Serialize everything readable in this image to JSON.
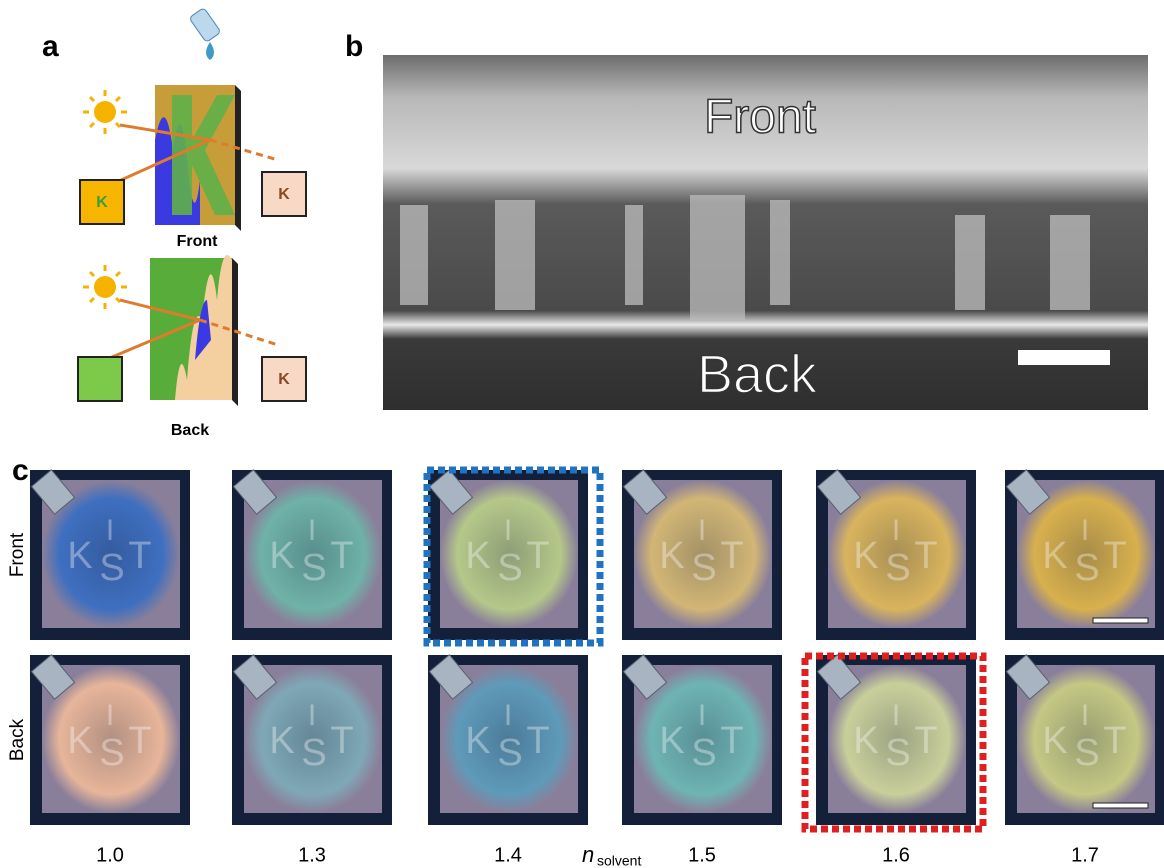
{
  "panel_a": {
    "label": "a",
    "front_caption": "Front",
    "back_caption": "Back",
    "box_letters": [
      "K",
      "K",
      "K"
    ]
  },
  "panel_b": {
    "label": "b",
    "front": "Front",
    "back": "Back"
  },
  "panel_c": {
    "label": "c",
    "row_labels": [
      "Front",
      "Back"
    ],
    "columns": [
      "1.0",
      "1.3",
      "1.4",
      "1.5",
      "1.6",
      "1.7"
    ],
    "axis_label": {
      "symbol": "n",
      "subscript": "solvent"
    },
    "sample_letters": [
      "K",
      "I",
      "S",
      "T"
    ],
    "front_colors": [
      "#3f6fc0",
      "#6fb2a8",
      "#b5c88a",
      "#d2b676",
      "#d9b45e",
      "#d8b04e"
    ],
    "back_colors": [
      "#e7b59a",
      "#7fa8b6",
      "#5f9ab9",
      "#6fb4b4",
      "#c9cf9b",
      "#c4c884"
    ]
  }
}
